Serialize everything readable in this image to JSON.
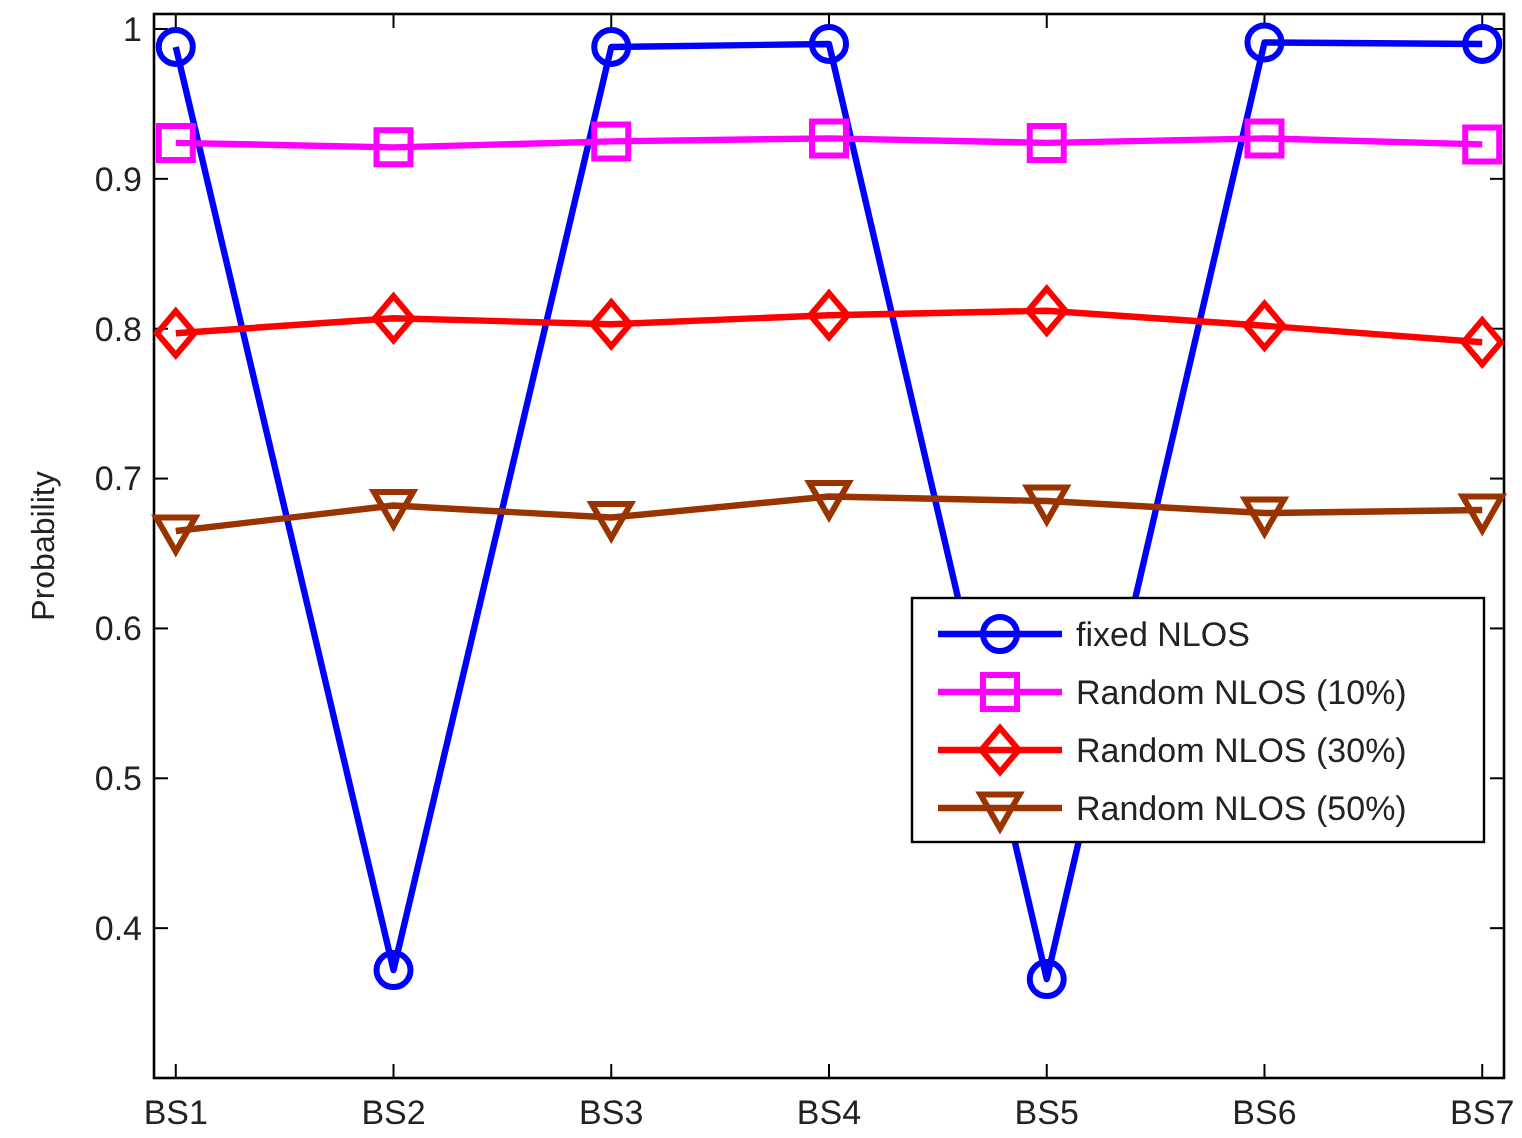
{
  "chart_data": {
    "type": "line",
    "ylabel": "Probability",
    "categories": [
      "BS1",
      "BS2",
      "BS3",
      "BS4",
      "BS5",
      "BS6",
      "BS7"
    ],
    "series": [
      {
        "name": "fixed NLOS",
        "color": "#0000ff",
        "marker": "circle",
        "values": [
          0.988,
          0.372,
          0.988,
          0.99,
          0.366,
          0.991,
          0.99
        ]
      },
      {
        "name": "Random NLOS (10%)",
        "color": "#ff00ff",
        "marker": "square",
        "values": [
          0.924,
          0.921,
          0.925,
          0.927,
          0.924,
          0.927,
          0.923
        ]
      },
      {
        "name": "Random NLOS (30%)",
        "color": "#ff0000",
        "marker": "diamond",
        "values": [
          0.797,
          0.807,
          0.803,
          0.809,
          0.812,
          0.802,
          0.791
        ]
      },
      {
        "name": "Random NLOS (50%)",
        "color": "#993300",
        "marker": "triangle",
        "values": [
          0.665,
          0.682,
          0.674,
          0.688,
          0.685,
          0.677,
          0.679
        ]
      }
    ],
    "ylim": [
      0.3,
      1.01
    ],
    "yticks": [
      0.4,
      0.5,
      0.6,
      0.7,
      0.8,
      0.9,
      {
        "value": 1,
        "label": "1"
      }
    ],
    "grid": false,
    "legend": "right",
    "line_style": "solid"
  }
}
